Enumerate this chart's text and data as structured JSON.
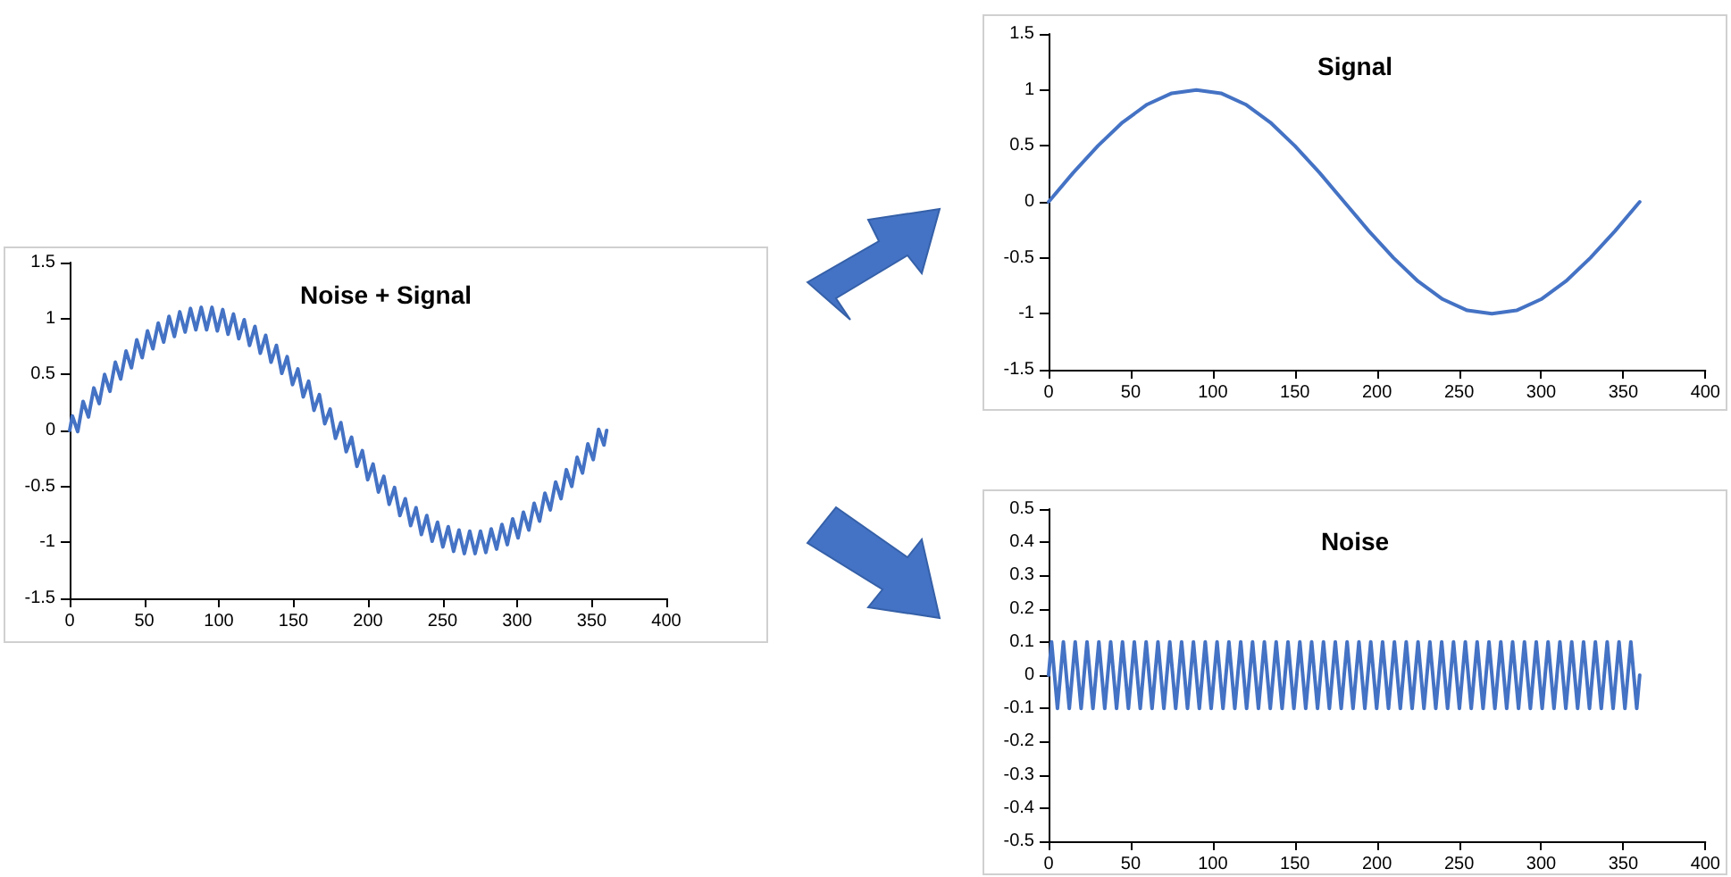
{
  "chart_data": [
    {
      "type": "line",
      "title": "Noise + Signal",
      "color": "#4472c4",
      "marker": "none",
      "xlim": [
        0,
        400
      ],
      "xticks": [
        0,
        50,
        100,
        150,
        200,
        250,
        300,
        350,
        400
      ],
      "ylim": [
        -1.5,
        1.5
      ],
      "yticks": [
        -1.5,
        -1,
        -0.5,
        0,
        0.5,
        1,
        1.5
      ],
      "x": [
        0,
        1.8,
        5.4,
        9,
        12.6,
        16.2,
        19.8,
        23.4,
        27,
        30.6,
        34.2,
        37.8,
        41.4,
        45,
        48.6,
        52.2,
        55.8,
        59.4,
        63,
        66.6,
        70.2,
        73.8,
        77.4,
        81,
        84.6,
        88.2,
        91.8,
        95.4,
        99,
        102.6,
        106.2,
        109.8,
        113.4,
        117,
        120.6,
        124.2,
        127.8,
        131.4,
        135,
        138.6,
        142.2,
        145.8,
        149.4,
        153,
        156.6,
        160.2,
        163.8,
        167.4,
        171,
        174.6,
        178.2,
        181.8,
        185.4,
        189,
        192.6,
        196.2,
        199.8,
        203.4,
        207,
        210.6,
        214.2,
        217.8,
        221.4,
        225,
        228.6,
        232.2,
        235.8,
        239.4,
        243,
        246.6,
        250.2,
        253.8,
        257.4,
        261,
        264.6,
        268.2,
        271.8,
        275.4,
        279,
        282.6,
        286.2,
        289.8,
        293.4,
        297,
        300.6,
        304.2,
        307.8,
        311.4,
        315,
        318.6,
        322.2,
        325.8,
        329.4,
        333,
        336.6,
        340.2,
        343.8,
        347.4,
        351,
        354.6,
        358.2,
        360
      ],
      "values": [
        0,
        0.13,
        -0.01,
        0.26,
        0.12,
        0.38,
        0.24,
        0.5,
        0.35,
        0.61,
        0.46,
        0.71,
        0.56,
        0.81,
        0.65,
        0.89,
        0.73,
        0.96,
        0.79,
        1.02,
        0.84,
        1.06,
        0.88,
        1.09,
        0.9,
        1.1,
        0.9,
        1.1,
        0.89,
        1.08,
        0.86,
        1.04,
        0.82,
        0.99,
        0.76,
        0.93,
        0.69,
        0.85,
        0.61,
        0.76,
        0.51,
        0.66,
        0.41,
        0.55,
        0.3,
        0.44,
        0.18,
        0.32,
        0.06,
        0.19,
        -0.07,
        0.07,
        -0.19,
        -0.06,
        -0.32,
        -0.18,
        -0.44,
        -0.3,
        -0.55,
        -0.41,
        -0.66,
        -0.51,
        -0.76,
        -0.61,
        -0.85,
        -0.69,
        -0.93,
        -0.76,
        -0.99,
        -0.82,
        -1.04,
        -0.86,
        -1.08,
        -0.89,
        -1.1,
        -0.9,
        -1.1,
        -0.9,
        -1.09,
        -0.88,
        -1.06,
        -0.84,
        -1.02,
        -0.79,
        -0.96,
        -0.73,
        -0.89,
        -0.65,
        -0.81,
        -0.56,
        -0.71,
        -0.46,
        -0.61,
        -0.35,
        -0.5,
        -0.24,
        -0.38,
        -0.12,
        -0.26,
        0.01,
        -0.13,
        0
      ]
    },
    {
      "type": "line",
      "title": "Signal",
      "color": "#4472c4",
      "marker": "none",
      "xlim": [
        0,
        400
      ],
      "xticks": [
        0,
        50,
        100,
        150,
        200,
        250,
        300,
        350,
        400
      ],
      "ylim": [
        -1.5,
        1.5
      ],
      "yticks": [
        -1.5,
        -1,
        -0.5,
        0,
        0.5,
        1,
        1.5
      ],
      "x": [
        0,
        15,
        30,
        45,
        60,
        75,
        90,
        105,
        120,
        135,
        150,
        165,
        180,
        195,
        210,
        225,
        240,
        255,
        270,
        285,
        300,
        315,
        330,
        345,
        360
      ],
      "values": [
        0,
        0.26,
        0.5,
        0.71,
        0.87,
        0.97,
        1,
        0.97,
        0.87,
        0.71,
        0.5,
        0.26,
        0,
        -0.26,
        -0.5,
        -0.71,
        -0.87,
        -0.97,
        -1,
        -0.97,
        -0.87,
        -0.71,
        -0.5,
        -0.26,
        0
      ]
    },
    {
      "type": "line",
      "title": "Noise",
      "color": "#4472c4",
      "marker": "none",
      "xlim": [
        0,
        400
      ],
      "xticks": [
        0,
        50,
        100,
        150,
        200,
        250,
        300,
        350,
        400
      ],
      "ylim": [
        -0.5,
        0.5
      ],
      "yticks": [
        -0.5,
        -0.4,
        -0.3,
        -0.2,
        -0.1,
        0,
        0.1,
        0.2,
        0.3,
        0.4,
        0.5
      ],
      "x": [
        0,
        1.8,
        5.4,
        9,
        12.6,
        16.2,
        19.8,
        23.4,
        27,
        30.6,
        34.2,
        37.8,
        41.4,
        45,
        48.6,
        52.2,
        55.8,
        59.4,
        63,
        66.6,
        70.2,
        73.8,
        77.4,
        81,
        84.6,
        88.2,
        91.8,
        95.4,
        99,
        102.6,
        106.2,
        109.8,
        113.4,
        117,
        120.6,
        124.2,
        127.8,
        131.4,
        135,
        138.6,
        142.2,
        145.8,
        149.4,
        153,
        156.6,
        160.2,
        163.8,
        167.4,
        171,
        174.6,
        178.2,
        181.8,
        185.4,
        189,
        192.6,
        196.2,
        199.8,
        203.4,
        207,
        210.6,
        214.2,
        217.8,
        221.4,
        225,
        228.6,
        232.2,
        235.8,
        239.4,
        243,
        246.6,
        250.2,
        253.8,
        257.4,
        261,
        264.6,
        268.2,
        271.8,
        275.4,
        279,
        282.6,
        286.2,
        289.8,
        293.4,
        297,
        300.6,
        304.2,
        307.8,
        311.4,
        315,
        318.6,
        322.2,
        325.8,
        329.4,
        333,
        336.6,
        340.2,
        343.8,
        347.4,
        351,
        354.6,
        358.2,
        360
      ],
      "values": [
        0,
        0.1,
        -0.1,
        0.1,
        -0.1,
        0.1,
        -0.1,
        0.1,
        -0.1,
        0.1,
        -0.1,
        0.1,
        -0.1,
        0.1,
        -0.1,
        0.1,
        -0.1,
        0.1,
        -0.1,
        0.1,
        -0.1,
        0.1,
        -0.1,
        0.1,
        -0.1,
        0.1,
        -0.1,
        0.1,
        -0.1,
        0.1,
        -0.1,
        0.1,
        -0.1,
        0.1,
        -0.1,
        0.1,
        -0.1,
        0.1,
        -0.1,
        0.1,
        -0.1,
        0.1,
        -0.1,
        0.1,
        -0.1,
        0.1,
        -0.1,
        0.1,
        -0.1,
        0.1,
        -0.1,
        0.1,
        -0.1,
        0.1,
        -0.1,
        0.1,
        -0.1,
        0.1,
        -0.1,
        0.1,
        -0.1,
        0.1,
        -0.1,
        0.1,
        -0.1,
        0.1,
        -0.1,
        0.1,
        -0.1,
        0.1,
        -0.1,
        0.1,
        -0.1,
        0.1,
        -0.1,
        0.1,
        -0.1,
        0.1,
        -0.1,
        0.1,
        -0.1,
        0.1,
        -0.1,
        0.1,
        -0.1,
        0.1,
        -0.1,
        0.1,
        -0.1,
        0.1,
        -0.1,
        0.1,
        -0.1,
        0.1,
        -0.1,
        0.1,
        -0.1,
        0.1,
        -0.1,
        0.1,
        -0.1,
        0
      ]
    }
  ]
}
